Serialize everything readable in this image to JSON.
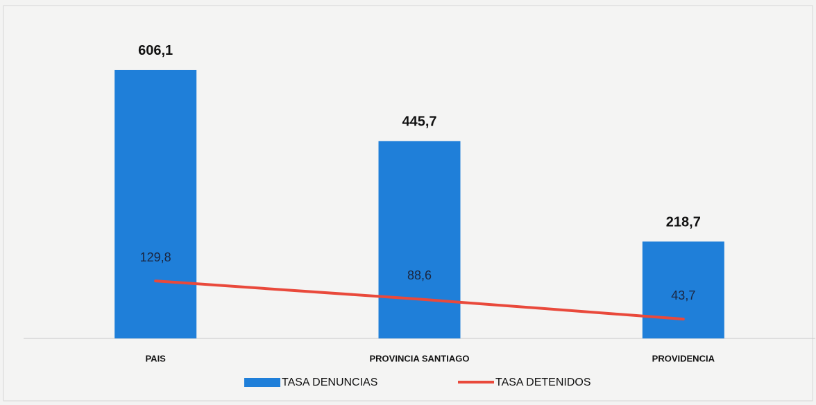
{
  "chart_data": {
    "type": "bar",
    "categories": [
      "PAIS",
      "PROVINCIA SANTIAGO",
      "PROVIDENCIA"
    ],
    "series": [
      {
        "name": "TASA DENUNCIAS",
        "type": "bar",
        "color": "#1f7fd9",
        "values": [
          606.1,
          445.7,
          218.7
        ],
        "value_labels": [
          "606,1",
          "445,7",
          "218,7"
        ]
      },
      {
        "name": "TASA DETENIDOS",
        "type": "line",
        "color": "#e9493b",
        "values": [
          129.8,
          88.6,
          43.7
        ],
        "value_labels": [
          "129,8",
          "88,6",
          "43,7"
        ]
      }
    ],
    "ylim": [
      0,
      700
    ],
    "legend": "bottom"
  }
}
